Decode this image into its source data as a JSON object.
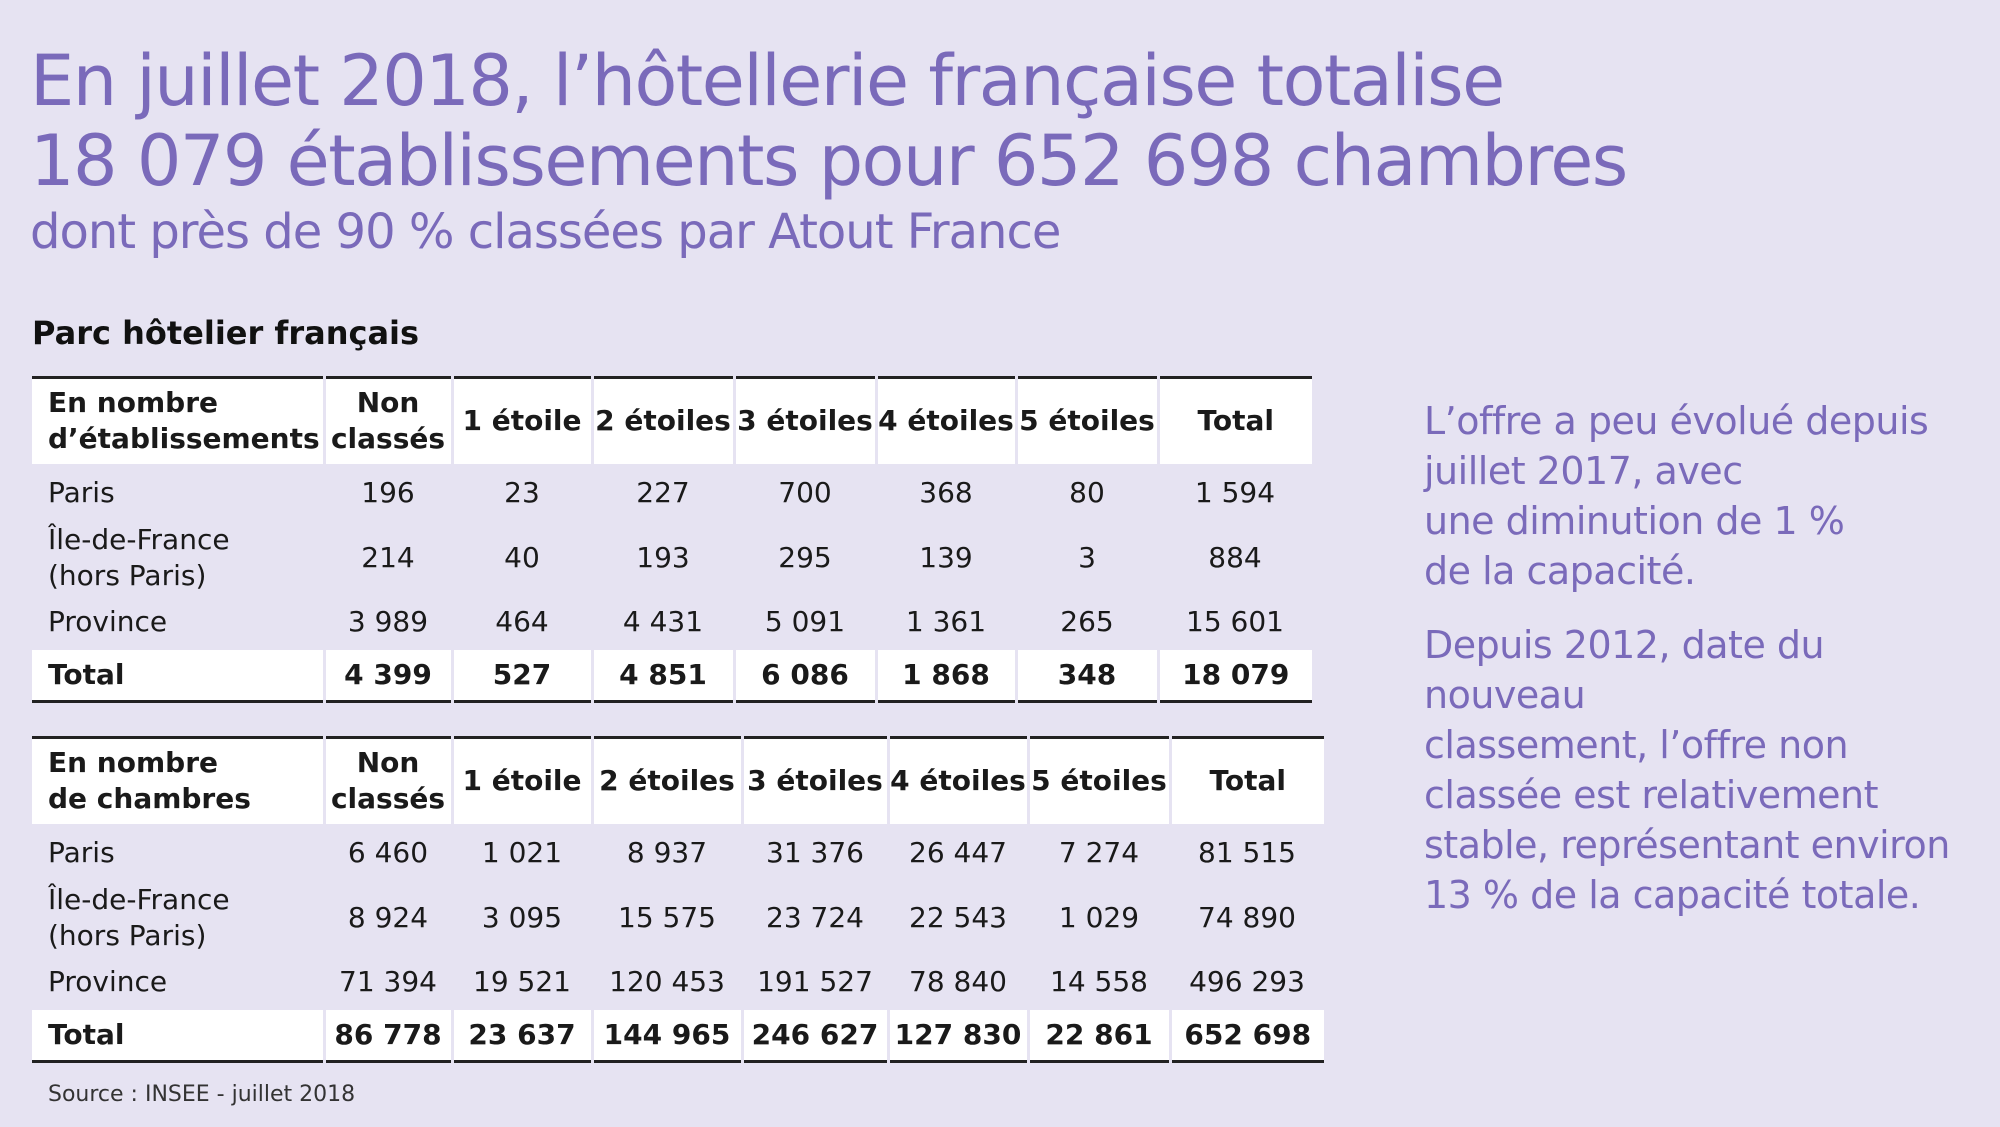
{
  "title": {
    "line1": "En juillet 2018, l’hôtellerie française totalise",
    "line2": "18 079 établissements pour 652 698 chambres",
    "subtitle": "dont près de 90 % classées par Atout France"
  },
  "section_title": "Parc hôtelier français",
  "table_etablissements": {
    "header": {
      "row_label": [
        "En nombre",
        "d’établissements"
      ],
      "col1": [
        "Non",
        "classés"
      ],
      "col2": "1 étoile",
      "col3": "2 étoiles",
      "col4": "3 étoiles",
      "col5": "4 étoiles",
      "col6": "5 étoiles",
      "col7": "Total"
    },
    "rows": [
      {
        "label": [
          "Paris"
        ],
        "values": [
          "196",
          "23",
          "227",
          "700",
          "368",
          "80",
          "1 594"
        ]
      },
      {
        "label": [
          "Île-de-France",
          "(hors Paris)"
        ],
        "values": [
          "214",
          "40",
          "193",
          "295",
          "139",
          "3",
          "884"
        ]
      },
      {
        "label": [
          "Province"
        ],
        "values": [
          "3 989",
          "464",
          "4 431",
          "5 091",
          "1 361",
          "265",
          "15 601"
        ]
      }
    ],
    "total": {
      "label": "Total",
      "values": [
        "4 399",
        "527",
        "4 851",
        "6 086",
        "1 868",
        "348",
        "18 079"
      ]
    }
  },
  "table_chambres": {
    "header": {
      "row_label": [
        "En nombre",
        "de chambres"
      ],
      "col1": [
        "Non",
        "classés"
      ],
      "col2": "1 étoile",
      "col3": "2 étoiles",
      "col4": "3 étoiles",
      "col5": "4 étoiles",
      "col6": "5 étoiles",
      "col7": "Total"
    },
    "rows": [
      {
        "label": [
          "Paris"
        ],
        "values": [
          "6 460",
          "1 021",
          "8 937",
          "31 376",
          "26 447",
          "7 274",
          "81 515"
        ]
      },
      {
        "label": [
          "Île-de-France",
          "(hors Paris)"
        ],
        "values": [
          "8 924",
          "3 095",
          "15 575",
          "23 724",
          "22 543",
          "1 029",
          "74 890"
        ]
      },
      {
        "label": [
          "Province"
        ],
        "values": [
          "71 394",
          "19 521",
          "120 453",
          "191 527",
          "78 840",
          "14 558",
          "496 293"
        ]
      }
    ],
    "total": {
      "label": "Total",
      "values": [
        "86 778",
        "23 637",
        "144 965",
        "246 627",
        "127 830",
        "22 861",
        "652 698"
      ]
    }
  },
  "side_text": {
    "p1": [
      "L’offre a peu évolué depuis",
      "juillet 2017, avec",
      "une diminution de 1 %",
      "de la capacité."
    ],
    "p2": [
      "Depuis 2012, date du nouveau",
      "classement, l’offre non",
      "classée est relativement",
      "stable, représentant environ",
      "13 % de la capacité totale."
    ]
  },
  "source": "Source : INSEE - juillet 2018",
  "colors": {
    "accent": "#7a6aba",
    "background": "#e6e3f2",
    "row_highlight": "#ffffff"
  }
}
